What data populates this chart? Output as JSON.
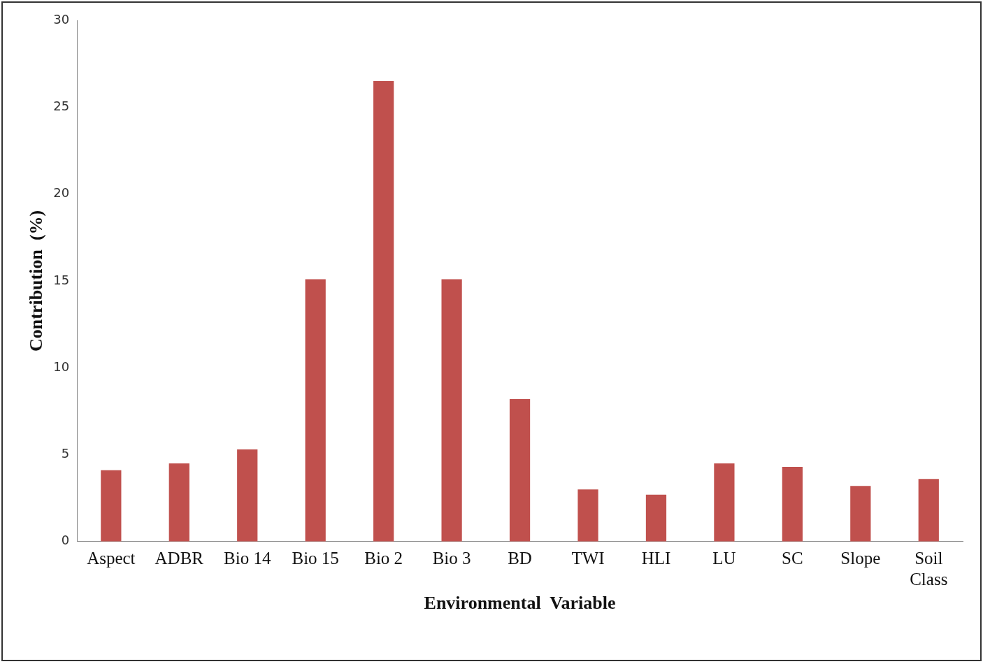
{
  "chart_data": {
    "type": "bar",
    "xlabel": "Environmental  Variable",
    "ylabel": "Contribution  (%)",
    "categories": [
      "Aspect",
      "ADBR",
      "Bio 14",
      "Bio 15",
      "Bio 2",
      "Bio 3",
      "BD",
      "TWI",
      "HLI",
      "LU",
      "SC",
      "Slope",
      "Soil Class"
    ],
    "values": [
      4.1,
      4.5,
      5.3,
      15.1,
      26.5,
      15.1,
      8.2,
      3.0,
      2.7,
      4.5,
      4.3,
      3.2,
      3.6
    ],
    "color": "#c0504d",
    "ylim": [
      0,
      30
    ],
    "yticks": [
      0,
      5,
      10,
      15,
      20,
      25,
      30
    ],
    "grid": false,
    "legend": false
  }
}
